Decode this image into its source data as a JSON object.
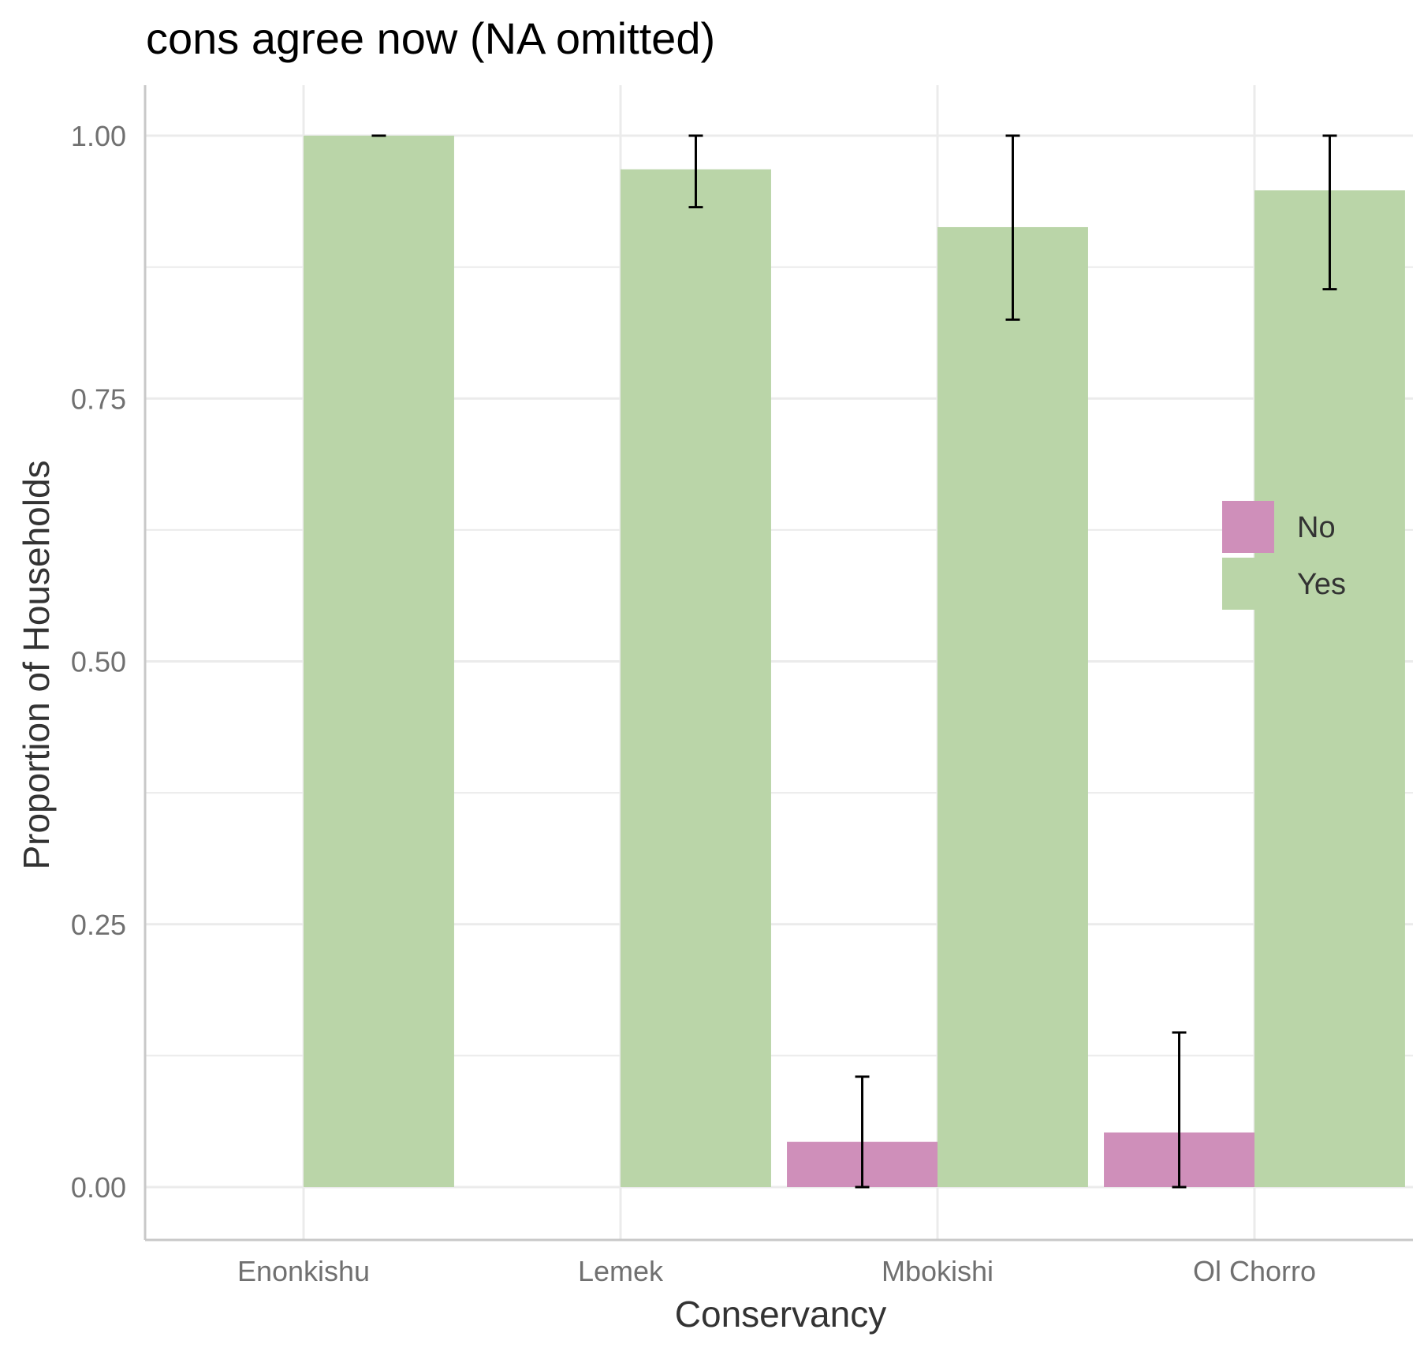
{
  "chart_data": {
    "type": "bar",
    "title": "cons agree now (NA omitted)",
    "xlabel": "Conservancy",
    "ylabel": "Proportion of Households",
    "categories": [
      "Enonkishu",
      "Lemek",
      "Mbokishi",
      "Ol Chorro"
    ],
    "series": [
      {
        "name": "No",
        "color": "#cf8fba",
        "values": [
          null,
          null,
          0.043,
          0.052
        ],
        "error_low": [
          null,
          null,
          0.0,
          0.0
        ],
        "error_high": [
          null,
          null,
          0.105,
          0.147
        ]
      },
      {
        "name": "Yes",
        "color": "#bad5a8",
        "values": [
          1.0,
          0.968,
          0.913,
          0.948
        ],
        "error_low": [
          1.0,
          0.932,
          0.825,
          0.854
        ],
        "error_high": [
          1.0,
          1.0,
          1.0,
          1.0
        ]
      }
    ],
    "ylim": [
      -0.05,
      1.05
    ],
    "yticks": [
      "0.00",
      "0.25",
      "0.50",
      "0.75",
      "1.00"
    ],
    "grid": true,
    "legend_position": "right"
  }
}
